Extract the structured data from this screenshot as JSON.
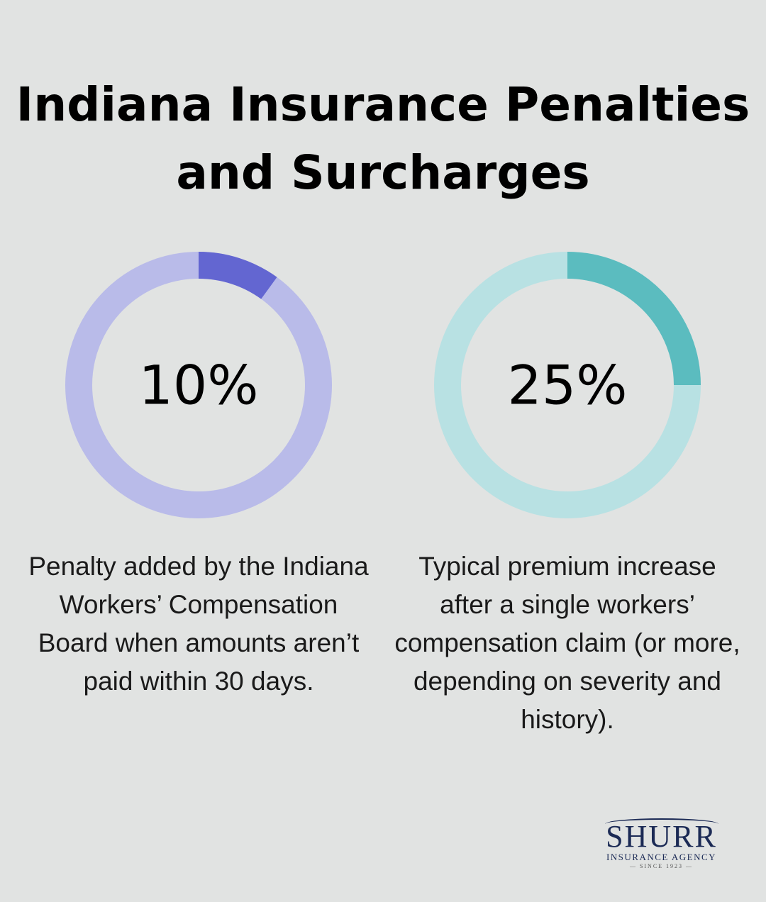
{
  "title_line1": "Indiana Insurance Penalties",
  "title_line2": "and Surcharges",
  "chart_data": [
    {
      "type": "pie",
      "style": "donut",
      "value": 10,
      "label": "10%",
      "description": "Penalty added by the Indiana Workers’ Compensation Board when amounts aren’t paid within 30 days.",
      "colors": {
        "fill": "#6366d1",
        "track": "#b9bbe9"
      }
    },
    {
      "type": "pie",
      "style": "donut",
      "value": 25,
      "label": "25%",
      "description": "Typical premium increase after a single workers’ compensation claim (or more, depending on severity and history).",
      "colors": {
        "fill": "#5bbcbf",
        "track": "#b8e1e3"
      }
    }
  ],
  "logo": {
    "name": "SHURR",
    "subtitle": "INSURANCE AGENCY",
    "since": "SINCE 1923"
  }
}
